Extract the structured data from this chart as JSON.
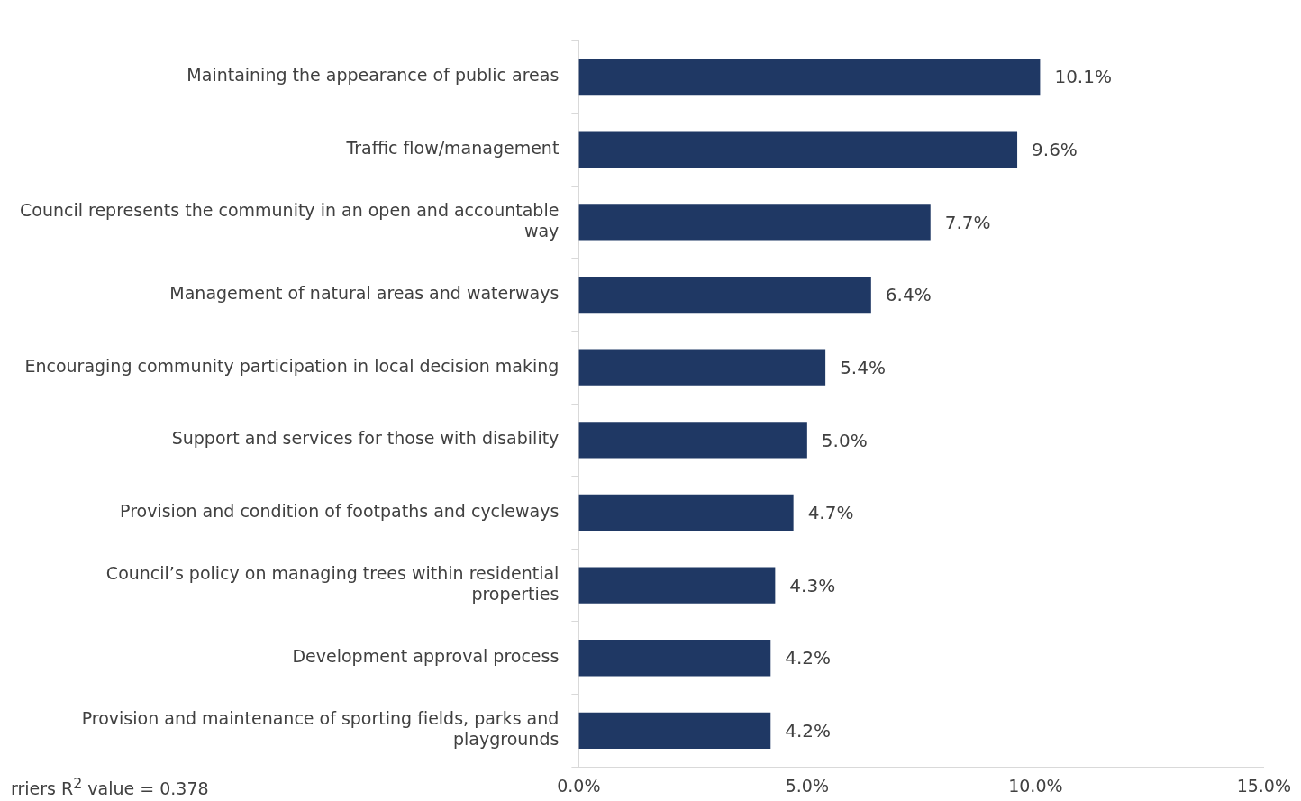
{
  "chart_data": {
    "type": "bar",
    "orientation": "horizontal",
    "categories": [
      "Maintaining the appearance of public areas",
      "Traffic flow/management",
      "Council represents the community in an open and accountable way",
      "Management of natural areas and waterways",
      "Encouraging community participation in local decision making",
      "Support and services for those with disability",
      "Provision and condition of footpaths and cycleways",
      "Council’s policy on managing trees within residential properties",
      "Development approval process",
      "Provision and maintenance of sporting fields, parks and playgrounds"
    ],
    "values": [
      10.1,
      9.6,
      7.7,
      6.4,
      5.4,
      5.0,
      4.7,
      4.3,
      4.2,
      4.2
    ],
    "value_labels": [
      "10.1%",
      "9.6%",
      "7.7%",
      "6.4%",
      "5.4%",
      "5.0%",
      "4.7%",
      "4.3%",
      "4.2%",
      "4.2%"
    ],
    "color": "#1f3864",
    "xlim": [
      0,
      15
    ],
    "xticks": [
      {
        "value": 0,
        "label": "0.0%"
      },
      {
        "value": 5,
        "label": "5.0%"
      },
      {
        "value": 10,
        "label": "10.0%"
      },
      {
        "value": 15,
        "label": "15.0%"
      }
    ],
    "annotations": [
      "rriers R$^{2}$ value = 0.378"
    ]
  }
}
